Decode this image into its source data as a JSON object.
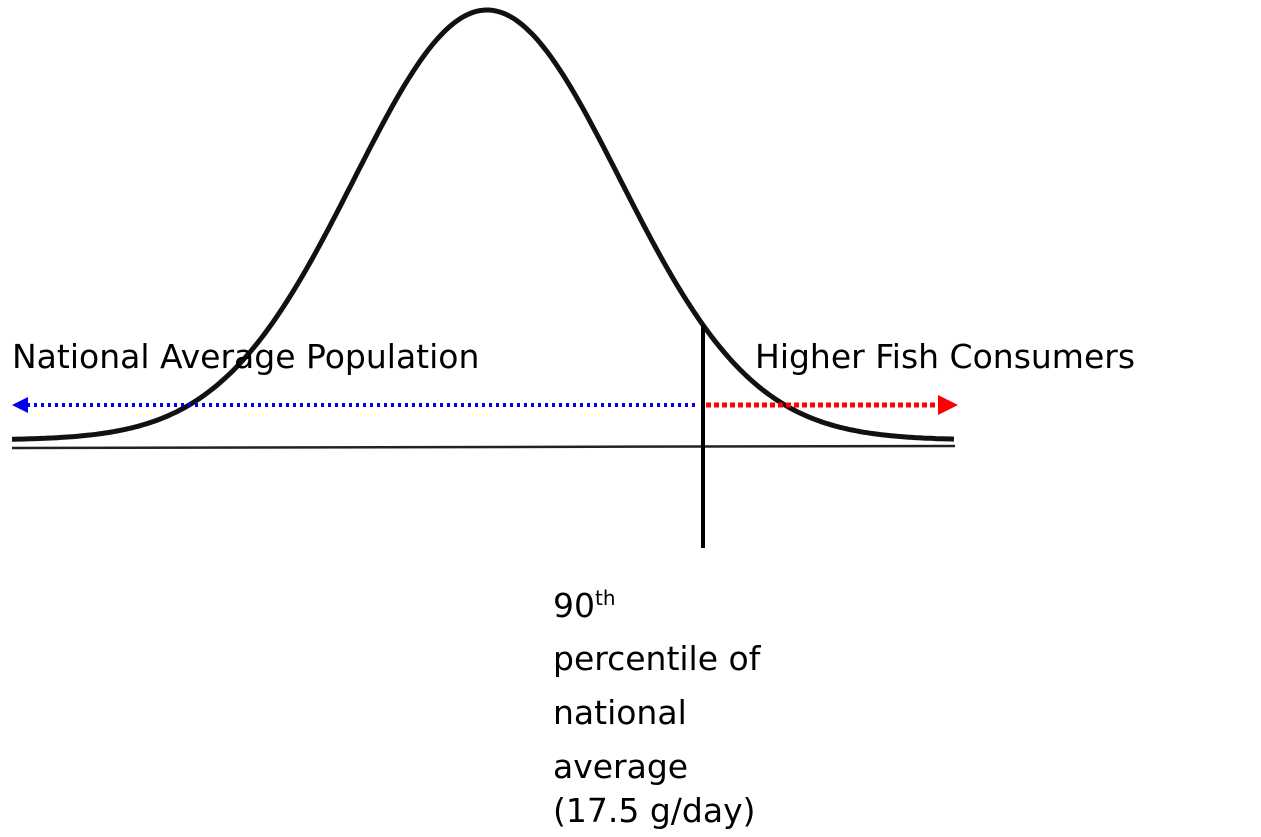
{
  "left_label": "National Average Population",
  "right_label": "Higher Fish Consumers",
  "marker_label": {
    "number": "90",
    "superscript": "th",
    "lines": [
      "percentile of",
      "national",
      "average",
      "(17.5 g/day)"
    ]
  }
}
